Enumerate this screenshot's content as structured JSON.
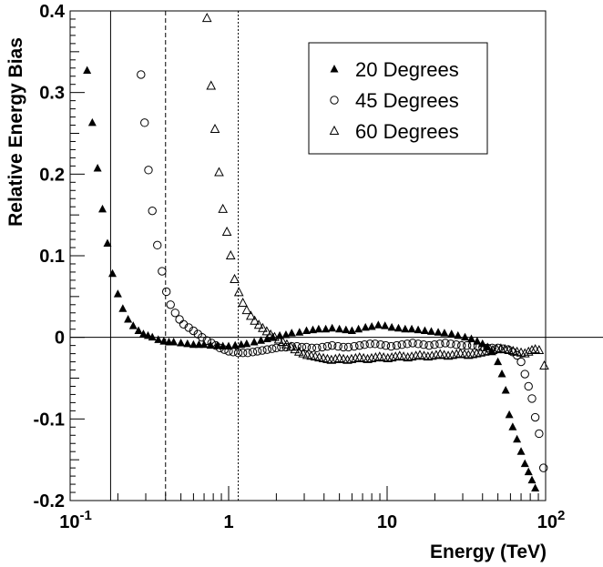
{
  "chart_data": {
    "type": "scatter",
    "title": "",
    "xlabel": "Energy (TeV)",
    "ylabel": "Relative Energy Bias",
    "xscale": "log",
    "xlim": [
      0.1,
      100
    ],
    "ylim": [
      -0.2,
      0.4
    ],
    "x_tick_labels": [
      {
        "value": 0.1,
        "base": "10",
        "exp": "-1"
      },
      {
        "value": 1,
        "base": "1",
        "exp": ""
      },
      {
        "value": 10,
        "base": "10",
        "exp": ""
      },
      {
        "value": 100,
        "base": "10",
        "exp": "2"
      }
    ],
    "y_tick_labels": [
      "-0.2",
      "-0.1",
      "0",
      "0.1",
      "0.2",
      "0.3",
      "0.4"
    ],
    "y_ticks": [
      -0.2,
      -0.1,
      0,
      0.1,
      0.2,
      0.3,
      0.4
    ],
    "grid": false,
    "legend_position": "top-right",
    "reference_lines": [
      {
        "axis": "y",
        "value": 0,
        "style": "solid"
      },
      {
        "axis": "x",
        "value": 0.18,
        "style": "solid"
      },
      {
        "axis": "x",
        "value": 0.4,
        "style": "dashed"
      },
      {
        "axis": "x",
        "value": 1.15,
        "style": "dotted"
      }
    ],
    "series": [
      {
        "name": "20 Degrees",
        "marker": "filled-triangle",
        "points": [
          [
            0.128,
            0.327
          ],
          [
            0.138,
            0.263
          ],
          [
            0.149,
            0.207
          ],
          [
            0.16,
            0.157
          ],
          [
            0.172,
            0.115
          ],
          [
            0.185,
            0.078
          ],
          [
            0.2,
            0.053
          ],
          [
            0.215,
            0.035
          ],
          [
            0.232,
            0.022
          ],
          [
            0.25,
            0.014
          ],
          [
            0.27,
            0.008
          ],
          [
            0.29,
            0.004
          ],
          [
            0.31,
            0.002
          ],
          [
            0.33,
            0.0
          ],
          [
            0.36,
            -0.003
          ],
          [
            0.39,
            -0.005
          ],
          [
            0.42,
            -0.006
          ],
          [
            0.45,
            -0.006
          ],
          [
            0.5,
            -0.007
          ],
          [
            0.55,
            -0.008
          ],
          [
            0.6,
            -0.009
          ],
          [
            0.65,
            -0.009
          ],
          [
            0.7,
            -0.009
          ],
          [
            0.77,
            -0.01
          ],
          [
            0.85,
            -0.01
          ],
          [
            0.92,
            -0.011
          ],
          [
            1.0,
            -0.011
          ],
          [
            1.1,
            -0.01
          ],
          [
            1.2,
            -0.009
          ],
          [
            1.3,
            -0.008
          ],
          [
            1.45,
            -0.006
          ],
          [
            1.6,
            -0.004
          ],
          [
            1.75,
            -0.002
          ],
          [
            1.9,
            0.0
          ],
          [
            2.1,
            0.002
          ],
          [
            2.3,
            0.003
          ],
          [
            2.5,
            0.005
          ],
          [
            2.8,
            0.006
          ],
          [
            3.1,
            0.008
          ],
          [
            3.4,
            0.009
          ],
          [
            3.7,
            0.01
          ],
          [
            4.1,
            0.01
          ],
          [
            4.5,
            0.011
          ],
          [
            5.0,
            0.01
          ],
          [
            5.5,
            0.009
          ],
          [
            6.0,
            0.008
          ],
          [
            6.6,
            0.01
          ],
          [
            7.3,
            0.012
          ],
          [
            8.0,
            0.013
          ],
          [
            8.8,
            0.015
          ],
          [
            9.7,
            0.014
          ],
          [
            10.7,
            0.012
          ],
          [
            11.8,
            0.011
          ],
          [
            13.0,
            0.01
          ],
          [
            14.3,
            0.01
          ],
          [
            15.7,
            0.009
          ],
          [
            17.3,
            0.008
          ],
          [
            19.0,
            0.007
          ],
          [
            21.0,
            0.006
          ],
          [
            23.0,
            0.005
          ],
          [
            25.5,
            0.004
          ],
          [
            28.0,
            0.002
          ],
          [
            31.0,
            0.0
          ],
          [
            34.0,
            -0.002
          ],
          [
            37.0,
            -0.005
          ],
          [
            40.0,
            -0.008
          ],
          [
            43.0,
            -0.012
          ],
          [
            46.0,
            -0.018
          ],
          [
            50.0,
            -0.03
          ],
          [
            53.0,
            -0.045
          ],
          [
            56.0,
            -0.065
          ],
          [
            59.0,
            -0.095
          ],
          [
            62.0,
            -0.11
          ],
          [
            66.0,
            -0.125
          ],
          [
            70.0,
            -0.14
          ],
          [
            74.0,
            -0.155
          ],
          [
            78.0,
            -0.165
          ],
          [
            82.0,
            -0.175
          ],
          [
            86.0,
            -0.185
          ]
        ]
      },
      {
        "name": "45 Degrees",
        "marker": "open-circle",
        "points": [
          [
            0.28,
            0.322
          ],
          [
            0.295,
            0.263
          ],
          [
            0.312,
            0.205
          ],
          [
            0.33,
            0.155
          ],
          [
            0.355,
            0.113
          ],
          [
            0.38,
            0.081
          ],
          [
            0.405,
            0.056
          ],
          [
            0.43,
            0.04
          ],
          [
            0.46,
            0.03
          ],
          [
            0.49,
            0.022
          ],
          [
            0.52,
            0.016
          ],
          [
            0.56,
            0.012
          ],
          [
            0.6,
            0.008
          ],
          [
            0.64,
            0.004
          ],
          [
            0.68,
            0.0
          ],
          [
            0.73,
            -0.004
          ],
          [
            0.78,
            -0.007
          ],
          [
            0.83,
            -0.01
          ],
          [
            0.88,
            -0.013
          ],
          [
            0.94,
            -0.015
          ],
          [
            1.0,
            -0.017
          ],
          [
            1.07,
            -0.018
          ],
          [
            1.15,
            -0.019
          ],
          [
            1.23,
            -0.019
          ],
          [
            1.32,
            -0.019
          ],
          [
            1.42,
            -0.018
          ],
          [
            1.52,
            -0.017
          ],
          [
            1.63,
            -0.016
          ],
          [
            1.75,
            -0.015
          ],
          [
            1.88,
            -0.014
          ],
          [
            2.0,
            -0.013
          ],
          [
            2.15,
            -0.012
          ],
          [
            2.3,
            -0.012
          ],
          [
            2.5,
            -0.011
          ],
          [
            2.7,
            -0.011
          ],
          [
            2.9,
            -0.012
          ],
          [
            3.1,
            -0.012
          ],
          [
            3.35,
            -0.013
          ],
          [
            3.6,
            -0.013
          ],
          [
            3.9,
            -0.012
          ],
          [
            4.2,
            -0.011
          ],
          [
            4.5,
            -0.01
          ],
          [
            4.9,
            -0.011
          ],
          [
            5.3,
            -0.012
          ],
          [
            5.7,
            -0.012
          ],
          [
            6.2,
            -0.011
          ],
          [
            6.7,
            -0.01
          ],
          [
            7.2,
            -0.009
          ],
          [
            7.8,
            -0.008
          ],
          [
            8.4,
            -0.008
          ],
          [
            9.1,
            -0.009
          ],
          [
            9.8,
            -0.01
          ],
          [
            10.6,
            -0.011
          ],
          [
            11.5,
            -0.01
          ],
          [
            12.4,
            -0.009
          ],
          [
            13.4,
            -0.008
          ],
          [
            14.5,
            -0.007
          ],
          [
            15.7,
            -0.008
          ],
          [
            17.0,
            -0.009
          ],
          [
            18.4,
            -0.01
          ],
          [
            19.9,
            -0.009
          ],
          [
            21.5,
            -0.008
          ],
          [
            23.3,
            -0.007
          ],
          [
            25.2,
            -0.008
          ],
          [
            27.3,
            -0.009
          ],
          [
            29.5,
            -0.01
          ],
          [
            31.9,
            -0.01
          ],
          [
            34.5,
            -0.01
          ],
          [
            37.3,
            -0.011
          ],
          [
            40.0,
            -0.012
          ],
          [
            43.0,
            -0.013
          ],
          [
            46.0,
            -0.013
          ],
          [
            50.0,
            -0.013
          ],
          [
            54.0,
            -0.014
          ],
          [
            58.0,
            -0.015
          ],
          [
            62.0,
            -0.018
          ],
          [
            66.0,
            -0.022
          ],
          [
            70.0,
            -0.03
          ],
          [
            74.0,
            -0.045
          ],
          [
            78.0,
            -0.06
          ],
          [
            82.0,
            -0.075
          ],
          [
            86.0,
            -0.098
          ],
          [
            91.0,
            -0.118
          ],
          [
            97.0,
            -0.16
          ]
        ]
      },
      {
        "name": "60 Degrees",
        "marker": "open-triangle",
        "points": [
          [
            0.73,
            0.391
          ],
          [
            0.775,
            0.308
          ],
          [
            0.82,
            0.255
          ],
          [
            0.87,
            0.202
          ],
          [
            0.92,
            0.157
          ],
          [
            0.975,
            0.129
          ],
          [
            1.03,
            0.1
          ],
          [
            1.09,
            0.071
          ],
          [
            1.16,
            0.055
          ],
          [
            1.23,
            0.042
          ],
          [
            1.3,
            0.033
          ],
          [
            1.38,
            0.026
          ],
          [
            1.46,
            0.02
          ],
          [
            1.55,
            0.015
          ],
          [
            1.64,
            0.011
          ],
          [
            1.74,
            0.007
          ],
          [
            1.84,
            0.003
          ],
          [
            1.95,
            0.0
          ],
          [
            2.07,
            -0.003
          ],
          [
            2.2,
            -0.006
          ],
          [
            2.33,
            -0.009
          ],
          [
            2.47,
            -0.012
          ],
          [
            2.62,
            -0.015
          ],
          [
            2.78,
            -0.018
          ],
          [
            2.95,
            -0.02
          ],
          [
            3.13,
            -0.022
          ],
          [
            3.32,
            -0.023
          ],
          [
            3.52,
            -0.024
          ],
          [
            3.73,
            -0.025
          ],
          [
            3.96,
            -0.026
          ],
          [
            4.2,
            -0.027
          ],
          [
            4.45,
            -0.028
          ],
          [
            4.72,
            -0.027
          ],
          [
            5.0,
            -0.026
          ],
          [
            5.3,
            -0.027
          ],
          [
            5.62,
            -0.028
          ],
          [
            5.96,
            -0.027
          ],
          [
            6.32,
            -0.026
          ],
          [
            6.7,
            -0.025
          ],
          [
            7.1,
            -0.026
          ],
          [
            7.53,
            -0.027
          ],
          [
            7.98,
            -0.026
          ],
          [
            8.46,
            -0.025
          ],
          [
            8.97,
            -0.024
          ],
          [
            9.5,
            -0.025
          ],
          [
            10.1,
            -0.026
          ],
          [
            10.7,
            -0.025
          ],
          [
            11.3,
            -0.024
          ],
          [
            12.0,
            -0.023
          ],
          [
            12.7,
            -0.024
          ],
          [
            13.5,
            -0.025
          ],
          [
            14.3,
            -0.024
          ],
          [
            15.2,
            -0.023
          ],
          [
            16.1,
            -0.022
          ],
          [
            17.1,
            -0.023
          ],
          [
            18.1,
            -0.024
          ],
          [
            19.2,
            -0.023
          ],
          [
            20.4,
            -0.022
          ],
          [
            21.6,
            -0.021
          ],
          [
            22.9,
            -0.022
          ],
          [
            24.3,
            -0.023
          ],
          [
            25.8,
            -0.022
          ],
          [
            27.4,
            -0.021
          ],
          [
            29.0,
            -0.02
          ],
          [
            30.8,
            -0.021
          ],
          [
            32.6,
            -0.022
          ],
          [
            34.6,
            -0.021
          ],
          [
            36.7,
            -0.02
          ],
          [
            38.9,
            -0.019
          ],
          [
            41.3,
            -0.018
          ],
          [
            43.8,
            -0.017
          ],
          [
            46.4,
            -0.016
          ],
          [
            49.2,
            -0.015
          ],
          [
            52.2,
            -0.014
          ],
          [
            55.4,
            -0.015
          ],
          [
            58.7,
            -0.016
          ],
          [
            62.3,
            -0.017
          ],
          [
            66.0,
            -0.018
          ],
          [
            70.0,
            -0.019
          ],
          [
            74.0,
            -0.02
          ],
          [
            78.0,
            -0.018
          ],
          [
            82.0,
            -0.016
          ],
          [
            86.0,
            -0.015
          ],
          [
            91.0,
            -0.016
          ],
          [
            98.0,
            -0.035
          ]
        ]
      }
    ]
  },
  "colors": {
    "axis": "#000000",
    "background": "#ffffff"
  }
}
